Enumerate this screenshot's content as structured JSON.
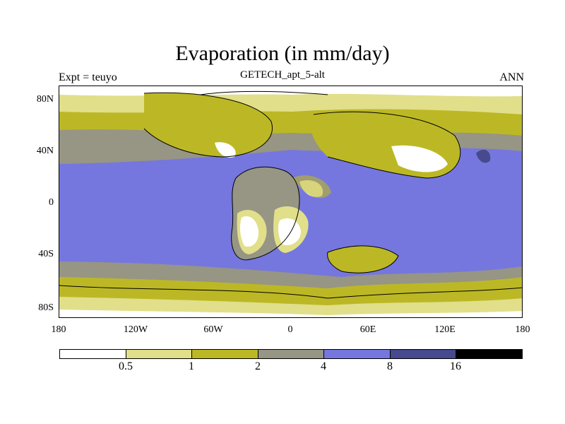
{
  "title": "Evaporation (in mm/day)",
  "subtitle": "GETECH_apt_5-alt",
  "left_label": "Expt = teuyo",
  "right_label": "ANN",
  "map": {
    "projection": "cylindrical-equidistant",
    "lon_range": [
      -180,
      180
    ],
    "lat_range": [
      -90,
      90
    ],
    "y_ticks": [
      "80N",
      "40N",
      "0",
      "40S",
      "80S"
    ],
    "x_ticks": [
      "180",
      "120W",
      "60W",
      "0",
      "60E",
      "120E",
      "180"
    ]
  },
  "colorbar": {
    "levels": [
      "0.5",
      "1",
      "2",
      "4",
      "8",
      "16"
    ],
    "colors": [
      "#ffffff",
      "#e1df8a",
      "#bcb825",
      "#979584",
      "#7577de",
      "#474a8e",
      "#000000"
    ]
  }
}
